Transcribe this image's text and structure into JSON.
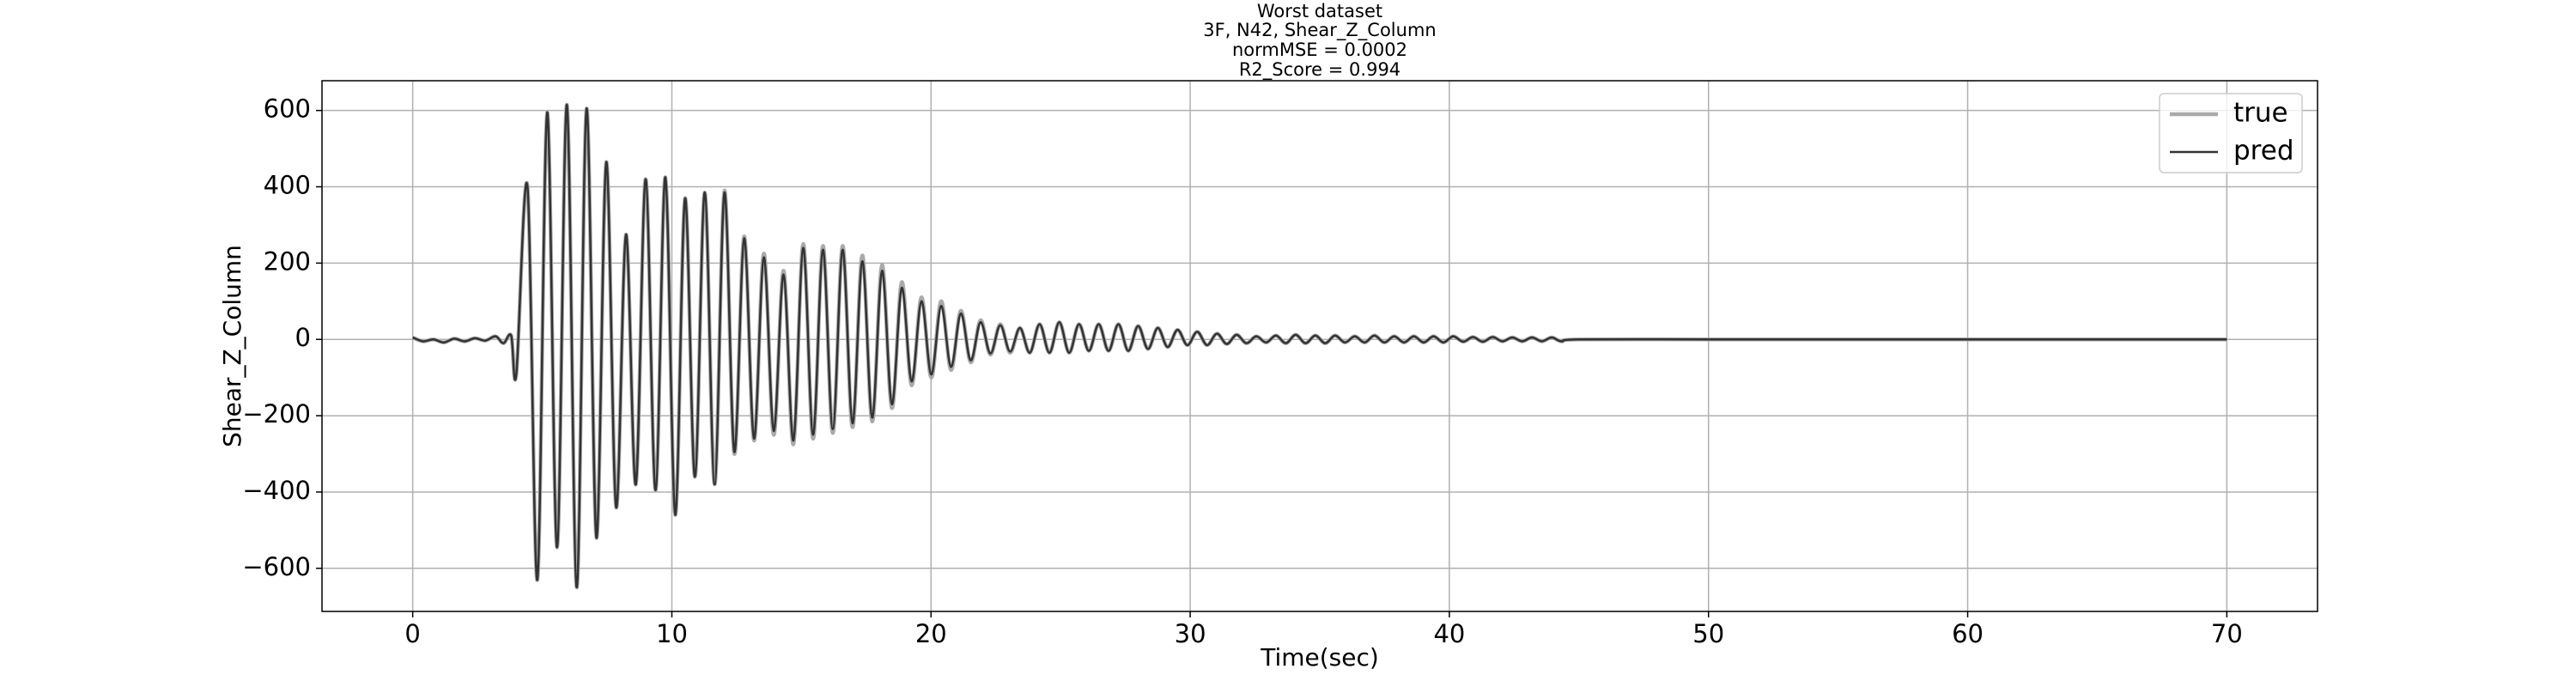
{
  "chart_data": {
    "type": "line",
    "title": [
      "Worst dataset",
      "3F, N42, Shear_Z_Column",
      "normMSE = 0.0002",
      "R2_Score = 0.994"
    ],
    "xlabel": "Time(sec)",
    "ylabel": "Shear_Z_Column",
    "xlim": [
      -3.5,
      73.5
    ],
    "ylim": [
      -713,
      678
    ],
    "xticks": [
      0,
      10,
      20,
      30,
      40,
      50,
      60,
      70
    ],
    "yticks": [
      {
        "value": -600,
        "label": "−600"
      },
      {
        "value": -400,
        "label": "−400"
      },
      {
        "value": -200,
        "label": "−200"
      },
      0,
      200,
      400,
      600
    ],
    "grid": true,
    "legend": "upper right",
    "x": [
      0,
      0.4,
      0.8,
      1.2,
      1.6,
      2.0,
      2.4,
      2.8,
      3.2,
      3.5,
      3.8,
      4.0,
      4.43,
      4.81,
      5.19,
      5.57,
      5.95,
      6.33,
      6.71,
      7.09,
      7.47,
      7.85,
      8.23,
      8.61,
      8.99,
      9.37,
      9.75,
      10.13,
      10.51,
      10.89,
      11.27,
      11.65,
      12.03,
      12.41,
      12.79,
      13.17,
      13.55,
      13.93,
      14.31,
      14.69,
      15.07,
      15.45,
      15.83,
      16.21,
      16.59,
      16.97,
      17.35,
      17.73,
      18.11,
      18.49,
      18.87,
      19.25,
      19.63,
      20.01,
      20.39,
      20.77,
      21.15,
      21.53,
      21.91,
      22.29,
      22.67,
      23.05,
      23.43,
      23.81,
      24.19,
      24.57,
      24.95,
      25.33,
      25.71,
      26.09,
      26.47,
      26.85,
      27.23,
      27.61,
      27.99,
      28.37,
      28.75,
      29.13,
      29.51,
      29.89,
      30.27,
      30.65,
      31.03,
      31.41,
      31.79,
      32.17,
      32.55,
      32.93,
      33.31,
      33.69,
      34.07,
      34.45,
      34.83,
      35.21,
      35.59,
      35.97,
      36.35,
      36.73,
      37.11,
      37.49,
      37.87,
      38.25,
      38.63,
      39.01,
      39.39,
      39.77,
      40.15,
      40.53,
      40.91,
      41.29,
      41.67,
      42.05,
      42.43,
      42.81,
      43.19,
      43.57,
      43.95,
      44.33,
      45,
      50,
      55,
      60,
      65,
      70
    ],
    "series": [
      {
        "name": "true",
        "color": "#aaaaaa",
        "values": [
          5,
          -5,
          0,
          -8,
          2,
          -5,
          3,
          -3,
          8,
          -10,
          10,
          -90,
          400,
          -630,
          595,
          -545,
          615,
          -650,
          605,
          -520,
          465,
          -440,
          275,
          -380,
          420,
          -395,
          425,
          -460,
          370,
          -360,
          385,
          -380,
          390,
          -300,
          270,
          -265,
          225,
          -250,
          180,
          -275,
          250,
          -260,
          245,
          -245,
          245,
          -230,
          220,
          -215,
          195,
          -180,
          150,
          -120,
          110,
          -100,
          100,
          -80,
          75,
          -60,
          50,
          -40,
          40,
          -35,
          30,
          -35,
          40,
          -35,
          45,
          -35,
          40,
          -30,
          40,
          -30,
          40,
          -30,
          35,
          -25,
          30,
          -20,
          25,
          -15,
          20,
          -15,
          15,
          -12,
          12,
          -10,
          8,
          -8,
          10,
          -10,
          12,
          -10,
          10,
          -10,
          10,
          -8,
          8,
          -8,
          10,
          -8,
          8,
          -8,
          8,
          -8,
          8,
          -8,
          8,
          -6,
          6,
          -6,
          6,
          -5,
          5,
          -5,
          5,
          -5,
          5,
          -5,
          0,
          0,
          0,
          0,
          0,
          0
        ]
      },
      {
        "name": "pred",
        "color": "#333333",
        "values": [
          5,
          -5,
          0,
          -8,
          2,
          -5,
          3,
          -3,
          8,
          -10,
          10,
          -90,
          400,
          -630,
          595,
          -545,
          615,
          -650,
          605,
          -520,
          465,
          -440,
          275,
          -380,
          420,
          -395,
          425,
          -460,
          370,
          -360,
          385,
          -380,
          385,
          -295,
          265,
          -260,
          215,
          -240,
          170,
          -265,
          240,
          -250,
          235,
          -235,
          235,
          -220,
          205,
          -205,
          180,
          -170,
          135,
          -110,
          100,
          -92,
          88,
          -72,
          68,
          -55,
          45,
          -37,
          37,
          -32,
          30,
          -35,
          40,
          -35,
          45,
          -35,
          40,
          -30,
          40,
          -30,
          40,
          -30,
          35,
          -25,
          30,
          -20,
          25,
          -15,
          20,
          -15,
          15,
          -12,
          12,
          -10,
          8,
          -8,
          10,
          -10,
          12,
          -10,
          10,
          -10,
          10,
          -8,
          8,
          -8,
          10,
          -8,
          8,
          -8,
          8,
          -8,
          8,
          -8,
          8,
          -6,
          6,
          -6,
          6,
          -5,
          5,
          -5,
          5,
          -5,
          5,
          -5,
          0,
          0,
          0,
          0,
          0,
          0
        ]
      }
    ]
  }
}
